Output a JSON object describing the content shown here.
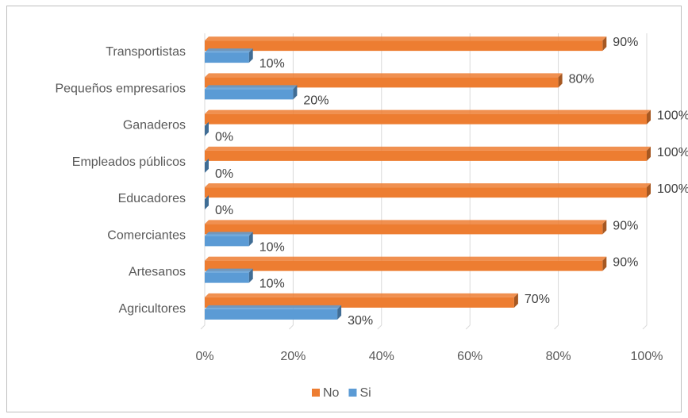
{
  "chart_data": {
    "type": "bar",
    "orientation": "horizontal",
    "style": "3d-clustered",
    "categories": [
      "Transportistas",
      "Pequeños empresarios",
      "Ganaderos",
      "Empleados públicos",
      "Educadores",
      "Comerciantes",
      "Artesanos",
      "Agricultores"
    ],
    "series": [
      {
        "name": "No",
        "color": "#ED7D31",
        "values": [
          90,
          80,
          100,
          100,
          100,
          90,
          90,
          70
        ],
        "labels": [
          "90%",
          "80%",
          "100%",
          "100%",
          "100%",
          "90%",
          "90%",
          "70%"
        ]
      },
      {
        "name": "Si",
        "color": "#5B9BD5",
        "values": [
          10,
          20,
          0,
          0,
          0,
          10,
          10,
          30
        ],
        "labels": [
          "10%",
          "20%",
          "0%",
          "0%",
          "0%",
          "10%",
          "10%",
          "30%"
        ]
      }
    ],
    "xlim": [
      0,
      100
    ],
    "x_ticks": [
      "0%",
      "20%",
      "40%",
      "60%",
      "80%",
      "100%"
    ],
    "grid": true,
    "legend_position": "bottom"
  }
}
